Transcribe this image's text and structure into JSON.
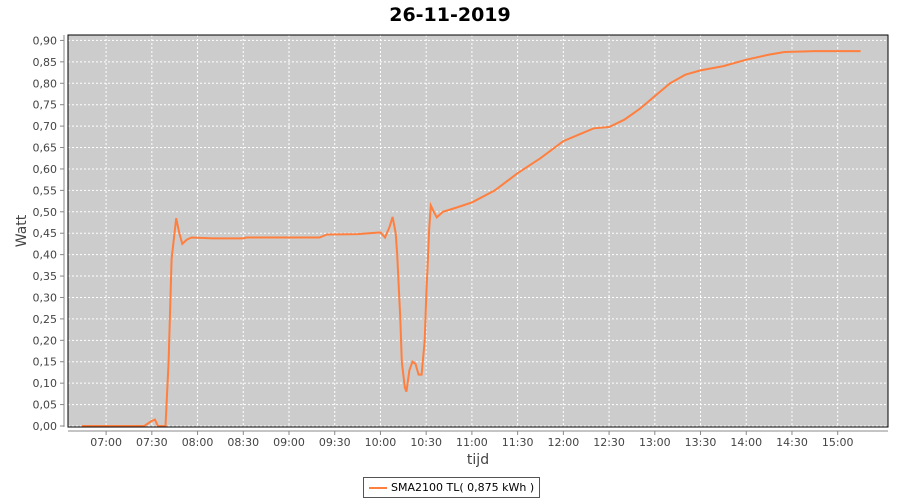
{
  "chart_data": {
    "type": "line",
    "title": "26-11-2019",
    "xlabel": "tijd",
    "ylabel": "Watt",
    "xlim": [
      "06:35",
      "15:33"
    ],
    "ylim": [
      0,
      0.915
    ],
    "x_ticks": [
      "07:00",
      "07:30",
      "08:00",
      "08:30",
      "09:00",
      "09:30",
      "10:00",
      "10:30",
      "11:00",
      "11:30",
      "12:00",
      "12:30",
      "13:00",
      "13:30",
      "14:00",
      "14:30",
      "15:00"
    ],
    "y_ticks": [
      "0,00",
      "0,05",
      "0,10",
      "0,15",
      "0,20",
      "0,25",
      "0,30",
      "0,35",
      "0,40",
      "0,45",
      "0,50",
      "0,55",
      "0,60",
      "0,65",
      "0,70",
      "0,75",
      "0,80",
      "0,85",
      "0,90"
    ],
    "grid": true,
    "legend_position": "bottom",
    "colors": {
      "plot_background": "#cccccc",
      "line": "#ff7f3f",
      "grid": "#ffffff"
    },
    "series": [
      {
        "name": "SMA2100 TL( 0,875 kWh )",
        "points": [
          [
            "06:44",
            0
          ],
          [
            "07:25",
            0
          ],
          [
            "07:30",
            0.012
          ],
          [
            "07:32",
            0.015
          ],
          [
            "07:34",
            0
          ],
          [
            "07:39",
            0
          ],
          [
            "07:41",
            0.15
          ],
          [
            "07:43",
            0.39
          ],
          [
            "07:46",
            0.485
          ],
          [
            "07:48",
            0.45
          ],
          [
            "07:50",
            0.425
          ],
          [
            "07:53",
            0.435
          ],
          [
            "07:56",
            0.44
          ],
          [
            "08:10",
            0.438
          ],
          [
            "08:30",
            0.438
          ],
          [
            "08:32",
            0.44
          ],
          [
            "09:20",
            0.44
          ],
          [
            "09:25",
            0.447
          ],
          [
            "09:45",
            0.448
          ],
          [
            "10:00",
            0.452
          ],
          [
            "10:03",
            0.44
          ],
          [
            "10:06",
            0.465
          ],
          [
            "10:08",
            0.488
          ],
          [
            "10:10",
            0.45
          ],
          [
            "10:11",
            0.4
          ],
          [
            "10:13",
            0.25
          ],
          [
            "10:14",
            0.15
          ],
          [
            "10:16",
            0.09
          ],
          [
            "10:17",
            0.08
          ],
          [
            "10:19",
            0.13
          ],
          [
            "10:21",
            0.15
          ],
          [
            "10:23",
            0.145
          ],
          [
            "10:25",
            0.12
          ],
          [
            "10:27",
            0.12
          ],
          [
            "10:29",
            0.2
          ],
          [
            "10:30",
            0.3
          ],
          [
            "10:32",
            0.46
          ],
          [
            "10:33",
            0.515
          ],
          [
            "10:35",
            0.5
          ],
          [
            "10:37",
            0.487
          ],
          [
            "10:41",
            0.5
          ],
          [
            "10:50",
            0.51
          ],
          [
            "11:00",
            0.522
          ],
          [
            "11:15",
            0.55
          ],
          [
            "11:30",
            0.59
          ],
          [
            "11:45",
            0.625
          ],
          [
            "12:00",
            0.665
          ],
          [
            "12:10",
            0.68
          ],
          [
            "12:20",
            0.695
          ],
          [
            "12:30",
            0.698
          ],
          [
            "12:40",
            0.715
          ],
          [
            "12:50",
            0.74
          ],
          [
            "13:00",
            0.77
          ],
          [
            "13:10",
            0.8
          ],
          [
            "13:20",
            0.82
          ],
          [
            "13:30",
            0.83
          ],
          [
            "13:45",
            0.84
          ],
          [
            "14:00",
            0.855
          ],
          [
            "14:15",
            0.867
          ],
          [
            "14:25",
            0.873
          ],
          [
            "14:45",
            0.875
          ],
          [
            "15:15",
            0.875
          ]
        ]
      }
    ]
  },
  "legend": {
    "label": "SMA2100 TL( 0,875 kWh )"
  }
}
